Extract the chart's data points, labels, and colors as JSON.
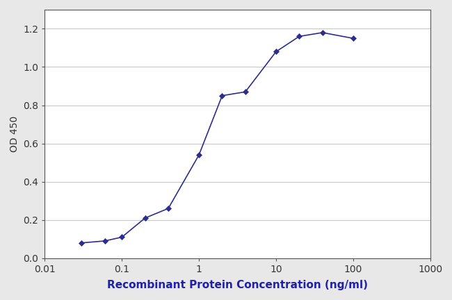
{
  "x": [
    0.03,
    0.06,
    0.1,
    0.2,
    0.4,
    1.0,
    2.0,
    4.0,
    10.0,
    20.0,
    40.0,
    100.0
  ],
  "y": [
    0.08,
    0.09,
    0.11,
    0.21,
    0.26,
    0.54,
    0.85,
    0.87,
    1.08,
    1.16,
    1.18,
    1.15
  ],
  "line_color": "#2d2d8f",
  "marker_color": "#2d2d8f",
  "marker": "D",
  "marker_size": 4,
  "line_width": 1.2,
  "xlabel": "Recombinant Protein Concentration (ng/ml)",
  "ylabel": "OD 450",
  "xlim": [
    0.01,
    1000
  ],
  "ylim": [
    0.0,
    1.3
  ],
  "yticks": [
    0.0,
    0.2,
    0.4,
    0.6,
    0.8,
    1.0,
    1.2
  ],
  "xticks": [
    0.01,
    0.1,
    1,
    10,
    100,
    1000
  ],
  "xtick_labels": [
    "0.01",
    "0.1",
    "1",
    "10",
    "100",
    "1000"
  ],
  "xlabel_fontsize": 11,
  "ylabel_fontsize": 10,
  "tick_fontsize": 10,
  "xlabel_color": "#2020aa",
  "ylabel_color": "#333333",
  "tick_color": "#333333",
  "plot_bg_color": "#ffffff",
  "fig_bg_color": "#e8e8e8",
  "grid_color": "#c8c8c8",
  "spine_color": "#555555"
}
